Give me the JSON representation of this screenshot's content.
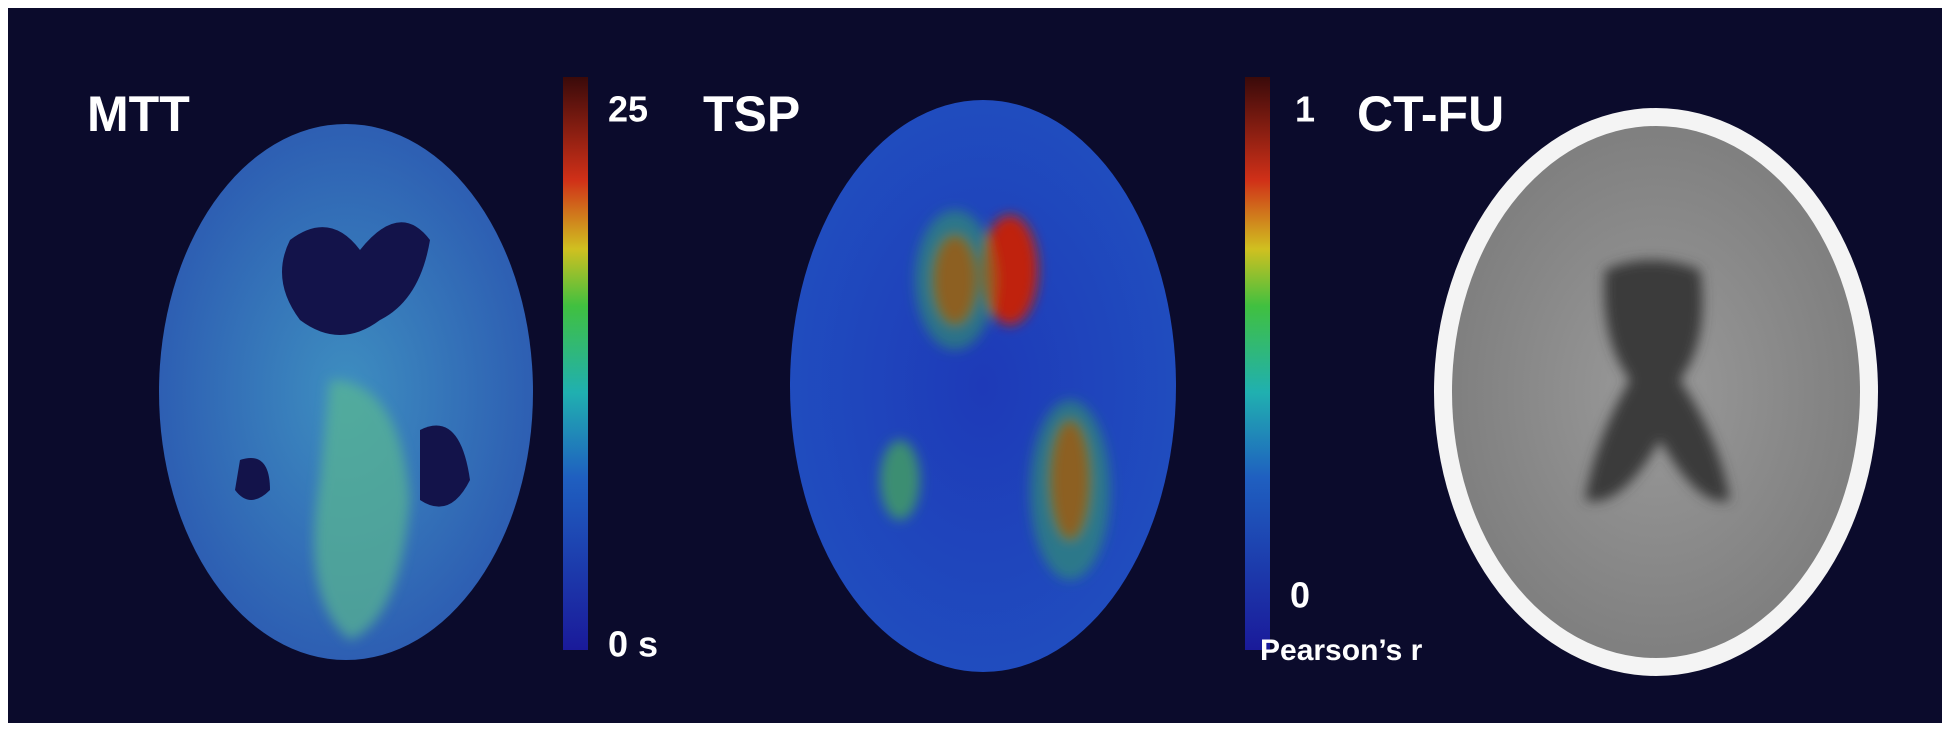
{
  "panels": [
    {
      "label": "MTT",
      "colorbar": {
        "max": "25",
        "min": "0 s"
      }
    },
    {
      "label": "TSP",
      "colorbar": {
        "max": "1",
        "min": "0",
        "unit": "Pearson’s r"
      }
    },
    {
      "label": "CT-FU"
    }
  ]
}
